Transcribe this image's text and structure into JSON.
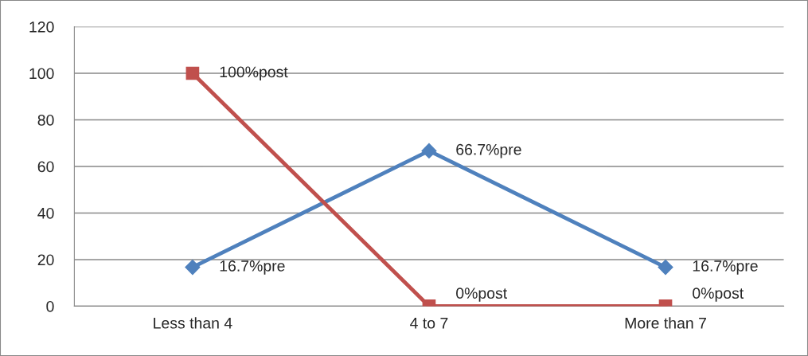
{
  "chart_data": {
    "type": "line",
    "categories": [
      "Less than 4",
      "4 to 7",
      "More than 7"
    ],
    "series": [
      {
        "color": "#4f81bd",
        "marker": "diamond",
        "values": [
          16.7,
          66.7,
          16.7
        ],
        "value_labels": [
          "16.7%pre",
          "66.7%pre",
          "16.7%pre"
        ]
      },
      {
        "color": "#c0504d",
        "marker": "square",
        "values": [
          100,
          0,
          0
        ],
        "value_labels": [
          "100%post",
          "0%post",
          "0%post"
        ]
      }
    ],
    "ylim": [
      0,
      120
    ],
    "yticks": [
      0,
      20,
      40,
      60,
      80,
      100,
      120
    ],
    "grid": "y"
  }
}
